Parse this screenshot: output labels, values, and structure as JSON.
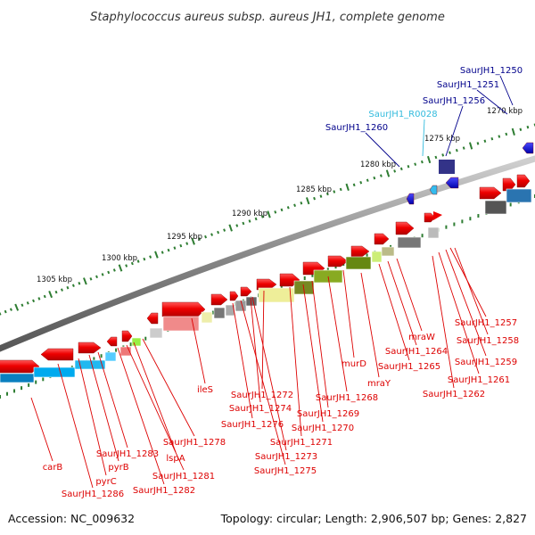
{
  "title": "Staphylococcus aureus subsp. aureus JH1, complete genome",
  "footer": {
    "accession": "Accession: NC_009632",
    "stats": "Topology: circular; Length: 2,906,507 bp; Genes: 2,827"
  },
  "colors": {
    "gene_forward": "#ee0000",
    "gene_reverse": "#0000cc",
    "rna": "#33bbee",
    "label_red": "#dd0000",
    "label_blue": "#00008b",
    "label_cyan": "#33bbdd",
    "ruler_tick": "#2e7d32"
  },
  "ruler": [
    {
      "label": "1305 kbp"
    },
    {
      "label": "1300 kbp"
    },
    {
      "label": "1295 kbp"
    },
    {
      "label": "1290 kbp"
    },
    {
      "label": "1285 kbp"
    },
    {
      "label": "1280 kbp"
    },
    {
      "label": "1275 kbp"
    },
    {
      "label": "1270 kbp"
    }
  ],
  "labels_top": [
    {
      "text": "SaurJH1_1250",
      "color": "#00008b"
    },
    {
      "text": "SaurJH1_1251",
      "color": "#00008b"
    },
    {
      "text": "SaurJH1_1256",
      "color": "#00008b"
    },
    {
      "text": "SaurJH1_R0028",
      "color": "#33bbdd"
    },
    {
      "text": "SaurJH1_1260",
      "color": "#00008b"
    }
  ],
  "labels_bottom": [
    "SaurJH1_1257",
    "SaurJH1_1258",
    "SaurJH1_1259",
    "SaurJH1_1261",
    "SaurJH1_1262",
    "mraW",
    "SaurJH1_1264",
    "SaurJH1_1265",
    "murD",
    "mraY",
    "SaurJH1_1268",
    "SaurJH1_1269",
    "SaurJH1_1270",
    "SaurJH1_1271",
    "SaurJH1_1272",
    "SaurJH1_1273",
    "SaurJH1_1274",
    "SaurJH1_1275",
    "SaurJH1_1276",
    "ileS",
    "SaurJH1_1278",
    "lspA",
    "SaurJH1_1281",
    "SaurJH1_1282",
    "SaurJH1_1283",
    "pyrB",
    "pyrC",
    "SaurJH1_1286",
    "carB"
  ]
}
